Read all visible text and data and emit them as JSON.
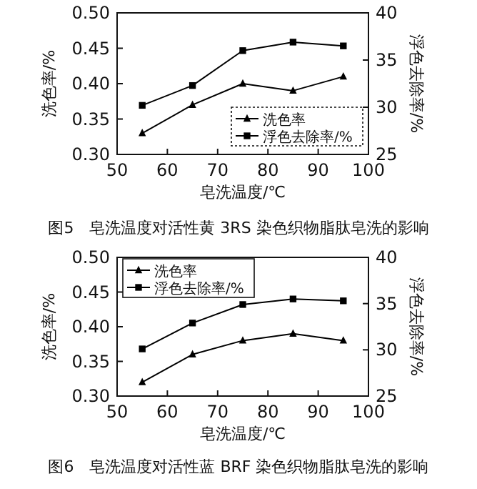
{
  "chart_data": [
    {
      "type": "line",
      "title": "图5　皂洗温度对活性黄 3RS 染色织物脂肽皂洗的影响",
      "xlabel": "皂洗温度/℃",
      "ylabel": "洗色率/%",
      "y2label": "浮色去除率/%",
      "x": [
        55,
        65,
        75,
        85,
        95
      ],
      "xlim": [
        50,
        100
      ],
      "xticks": [
        50,
        60,
        70,
        80,
        90,
        100
      ],
      "ylim": [
        0.3,
        0.5
      ],
      "yticks": [
        {
          "value": 0.3,
          "label": "0.30"
        },
        {
          "value": 0.35,
          "label": "0.35"
        },
        {
          "value": 0.4,
          "label": "0.40"
        },
        {
          "value": 0.45,
          "label": "0.45"
        },
        {
          "value": 0.5,
          "label": "0.50"
        }
      ],
      "y2lim": [
        25,
        40
      ],
      "y2ticks": [
        25,
        30,
        35,
        40
      ],
      "legend": "bottom right",
      "grid": false,
      "series": [
        {
          "name": "洗色率",
          "color": "#000000",
          "marker": "triangle",
          "values": [
            0.33,
            0.37,
            0.4,
            0.39,
            0.41
          ]
        },
        {
          "name": "浮色去除率/%",
          "color": "#000000",
          "marker": "square",
          "axis": "y2",
          "values": [
            30.2,
            32.3,
            36.0,
            36.9,
            36.5
          ]
        }
      ]
    },
    {
      "type": "line",
      "title": "图6　皂洗温度对活性蓝 BRF 染色织物脂肽皂洗的影响",
      "xlabel": "皂洗温度/℃",
      "ylabel": "洗色率/%",
      "y2label": "浮色去除率/%",
      "x": [
        55,
        65,
        75,
        85,
        95
      ],
      "xlim": [
        50,
        100
      ],
      "xticks": [
        50,
        60,
        70,
        80,
        90,
        100
      ],
      "ylim": [
        0.3,
        0.5
      ],
      "yticks": [
        {
          "value": 0.3,
          "label": "0.30"
        },
        {
          "value": 0.35,
          "label": "0.35"
        },
        {
          "value": 0.4,
          "label": "0.40"
        },
        {
          "value": 0.45,
          "label": "0.45"
        },
        {
          "value": 0.5,
          "label": "0.50"
        }
      ],
      "y2lim": [
        25,
        40
      ],
      "y2ticks": [
        25,
        30,
        35,
        40
      ],
      "legend": "top left",
      "grid": false,
      "series": [
        {
          "name": "洗色率",
          "color": "#000000",
          "marker": "triangle",
          "values": [
            0.32,
            0.36,
            0.38,
            0.39,
            0.38
          ]
        },
        {
          "name": "浮色去除率/%",
          "color": "#000000",
          "marker": "square",
          "axis": "y2",
          "values": [
            30.1,
            32.9,
            34.9,
            35.5,
            35.3
          ]
        }
      ]
    }
  ]
}
